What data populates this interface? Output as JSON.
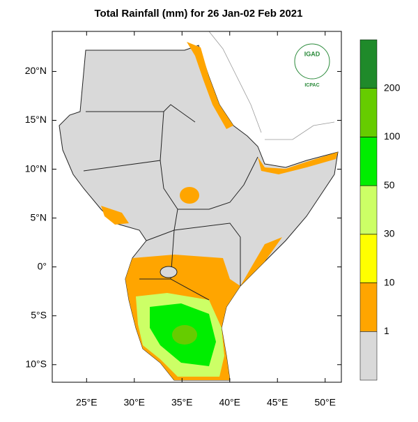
{
  "chart_data": {
    "type": "map",
    "title": "Total Rainfall (mm) for 26 Jan-02 Feb 2021",
    "xlim": [
      21.4,
      51.7
    ],
    "ylim": [
      -11.8,
      24.1
    ],
    "xticks": [
      {
        "value": 25,
        "label": "25°E"
      },
      {
        "value": 30,
        "label": "30°E"
      },
      {
        "value": 35,
        "label": "35°E"
      },
      {
        "value": 40,
        "label": "40°E"
      },
      {
        "value": 45,
        "label": "45°E"
      },
      {
        "value": 50,
        "label": "50°E"
      }
    ],
    "yticks": [
      {
        "value": 20,
        "label": "20°N"
      },
      {
        "value": 15,
        "label": "15°N"
      },
      {
        "value": 10,
        "label": "10°N"
      },
      {
        "value": 5,
        "label": "5°N"
      },
      {
        "value": 0,
        "label": "0°"
      },
      {
        "value": -5,
        "label": "5°S"
      },
      {
        "value": -10,
        "label": "10°S"
      }
    ],
    "colorbar": {
      "levels": [
        1,
        10,
        30,
        50,
        100,
        200
      ],
      "colors": [
        "#d9d9d9",
        "#ffa500",
        "#ffff00",
        "#ccff66",
        "#00ee00",
        "#66cc00",
        "#1f8a2a"
      ]
    },
    "logo": {
      "top": "IGAD",
      "bottom": "ICPAC"
    }
  }
}
